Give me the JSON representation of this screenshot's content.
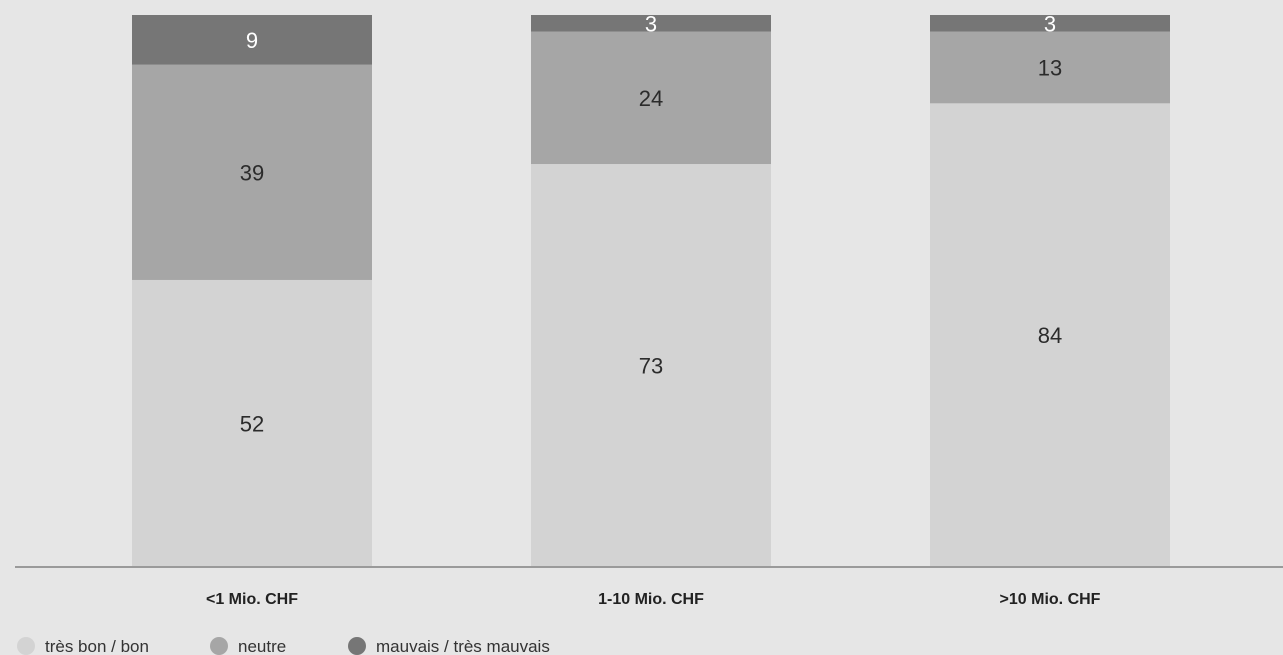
{
  "chart_data": {
    "type": "bar",
    "stacked": true,
    "categories": [
      "<1 Mio. CHF",
      "1-10 Mio. CHF",
      ">10 Mio. CHF"
    ],
    "series": [
      {
        "name": "très bon / bon",
        "values": [
          52,
          73,
          84
        ],
        "color": "#d3d3d3"
      },
      {
        "name": "neutre",
        "values": [
          39,
          24,
          13
        ],
        "color": "#a6a6a6"
      },
      {
        "name": "mauvais / très mauvais",
        "values": [
          9,
          3,
          3
        ],
        "color": "#767676"
      }
    ],
    "ylim": [
      0,
      100
    ],
    "grid": false,
    "legend_position": "bottom-left",
    "title": "",
    "xlabel": "",
    "ylabel": ""
  }
}
